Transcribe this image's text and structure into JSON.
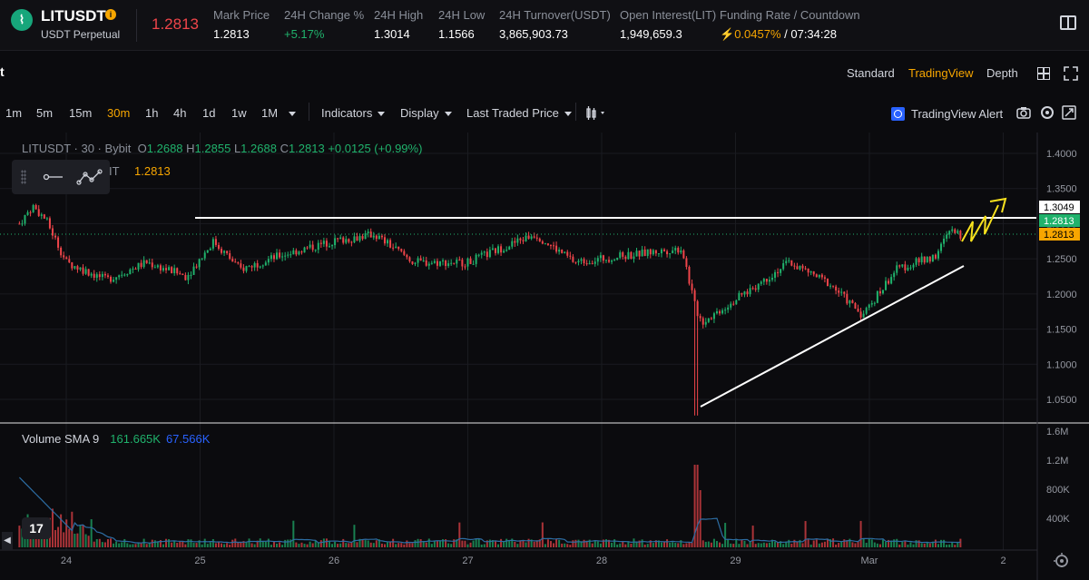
{
  "header": {
    "symbol": "LITUSDT",
    "info_icon": "info-icon",
    "contract_type": "USDT Perpetual",
    "last_price": "1.2813",
    "stats": [
      {
        "label": "Mark Price",
        "value": "1.2813",
        "tone": "neutral"
      },
      {
        "label": "24H Change %",
        "value": "+5.17%",
        "tone": "up"
      },
      {
        "label": "24H High",
        "value": "1.3014",
        "tone": "neutral"
      },
      {
        "label": "24H Low",
        "value": "1.1566",
        "tone": "neutral"
      },
      {
        "label": "24H Turnover(USDT)",
        "value": "3,865,903.73",
        "tone": "neutral"
      },
      {
        "label": "Open Interest(LIT)",
        "value": "1,949,659.3",
        "tone": "neutral"
      }
    ],
    "funding": {
      "label": "Funding Rate / Countdown",
      "rate": "0.0457%",
      "countdown": "07:34:28"
    }
  },
  "view_tabs": {
    "title_fragment": "t",
    "options": [
      "Standard",
      "TradingView",
      "Depth"
    ],
    "active": "TradingView"
  },
  "toolbar": {
    "intervals": [
      "1m",
      "5m",
      "15m",
      "30m",
      "1h",
      "4h",
      "1d",
      "1w",
      "1M"
    ],
    "active_interval": "30m",
    "indicators": "Indicators",
    "display": "Display",
    "price_source": "Last Traded Price",
    "tv_alert": "TradingView Alert"
  },
  "legend": {
    "symbol_line": "LITUSDT · 30 · Bybit",
    "open": "1.2688",
    "high": "1.2855",
    "low": "1.2688",
    "close": "1.2813",
    "change": "+0.0125 (+0.99%)",
    "sub_label": "IT",
    "sub_price": "1.2813"
  },
  "volume_legend": {
    "label": "Volume SMA 9",
    "value1": "161.665K",
    "value2": "67.566K"
  },
  "colors": {
    "up": "#20b26c",
    "down": "#ef454a",
    "accent": "#f7a600",
    "background": "#0b0b0e"
  },
  "chart_data": {
    "type": "candlestick",
    "price_axis_ticks": [
      "1.4000",
      "1.3500",
      "1.3000",
      "1.2500",
      "1.2000",
      "1.1500",
      "1.1000",
      "1.0500"
    ],
    "price_axis_range": [
      1.0,
      1.43
    ],
    "price_labels": [
      {
        "value": "1.3049",
        "style": "white"
      },
      {
        "value": "1.2813",
        "style": "green"
      },
      {
        "value": "1.2813",
        "style": "orange"
      }
    ],
    "volume_axis_ticks": [
      "1.6M",
      "1.2M",
      "800K",
      "400K"
    ],
    "x_ticks": [
      "24",
      "25",
      "26",
      "27",
      "28",
      "29",
      "Mar",
      "2"
    ],
    "price_path_approx": [
      {
        "x": "23.65",
        "price": 1.3
      },
      {
        "x": "23.75",
        "price": 1.325
      },
      {
        "x": "23.85",
        "price": 1.305
      },
      {
        "x": "24.0",
        "price": 1.245
      },
      {
        "x": "24.3",
        "price": 1.22
      },
      {
        "x": "24.6",
        "price": 1.245
      },
      {
        "x": "24.9",
        "price": 1.225
      },
      {
        "x": "25.1",
        "price": 1.275
      },
      {
        "x": "25.3",
        "price": 1.235
      },
      {
        "x": "25.6",
        "price": 1.255
      },
      {
        "x": "26.0",
        "price": 1.275
      },
      {
        "x": "26.3",
        "price": 1.285
      },
      {
        "x": "26.6",
        "price": 1.245
      },
      {
        "x": "27.0",
        "price": 1.245
      },
      {
        "x": "27.5",
        "price": 1.285
      },
      {
        "x": "27.8",
        "price": 1.245
      },
      {
        "x": "28.2",
        "price": 1.255
      },
      {
        "x": "28.6",
        "price": 1.265
      },
      {
        "x": "28.7",
        "price": 1.18
      },
      {
        "x": "28.75",
        "price": 1.16
      },
      {
        "x": "29.1",
        "price": 1.205
      },
      {
        "x": "29.4",
        "price": 1.245
      },
      {
        "x": "29.7",
        "price": 1.215
      },
      {
        "x": "29.95",
        "price": 1.17
      },
      {
        "x": "30.2",
        "price": 1.235
      },
      {
        "x": "30.5",
        "price": 1.255
      },
      {
        "x": "30.6",
        "price": 1.29
      },
      {
        "x": "30.7",
        "price": 1.281
      }
    ],
    "annotations": [
      {
        "type": "horizontal_line",
        "price": 1.3049,
        "color": "#ffffff"
      },
      {
        "type": "trend_line",
        "from": {
          "x": "28.75",
          "price": 1.025
        },
        "to": {
          "x": "30.95",
          "price": 1.235
        },
        "color": "#ffffff"
      },
      {
        "type": "zigzag_arrow",
        "color": "#f7e11e"
      }
    ]
  }
}
